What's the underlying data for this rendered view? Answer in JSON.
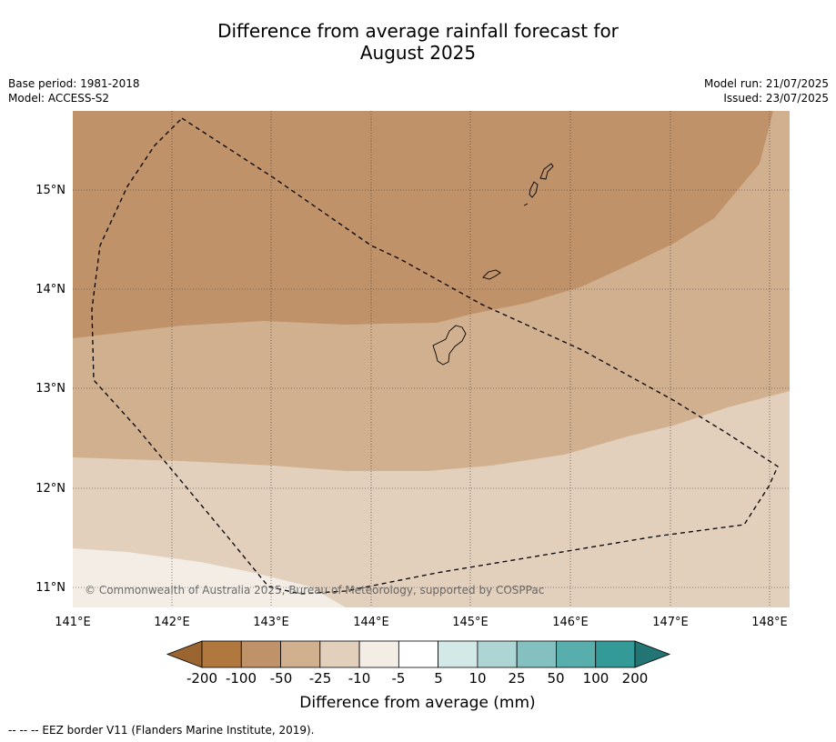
{
  "title_line1": "Difference from average rainfall forecast for",
  "title_line2": "August 2025",
  "base_period": "Base period: 1981-2018",
  "model": "Model: ACCESS-S2",
  "model_run": "Model run: 21/07/2025",
  "issued": "Issued: 23/07/2025",
  "copyright": "© Commonwealth of Australia 2025, Bureau of Meteorology, supported by COSPPac",
  "lat_labels": [
    "15°N",
    "14°N",
    "13°N",
    "12°N",
    "11°N"
  ],
  "lon_labels": [
    "141°E",
    "142°E",
    "143°E",
    "144°E",
    "145°E",
    "146°E",
    "147°E",
    "148°E"
  ],
  "colorbar": {
    "ticks": [
      "-200",
      "-100",
      "-50",
      "-25",
      "-10",
      "-5",
      "5",
      "10",
      "25",
      "50",
      "100",
      "200"
    ],
    "colors": [
      "#9b6532",
      "#b0773f",
      "#c09269",
      "#d1b090",
      "#e2cfbc",
      "#f3ede6",
      "#ffffff",
      "#d3e9e8",
      "#acd5d3",
      "#84c0c0",
      "#57aeac",
      "#339a98",
      "#237574"
    ],
    "label": "Difference from average (mm)"
  },
  "legend_note": "--  --  -- EEZ border V11 (Flanders Marine Institute, 2019)."
}
